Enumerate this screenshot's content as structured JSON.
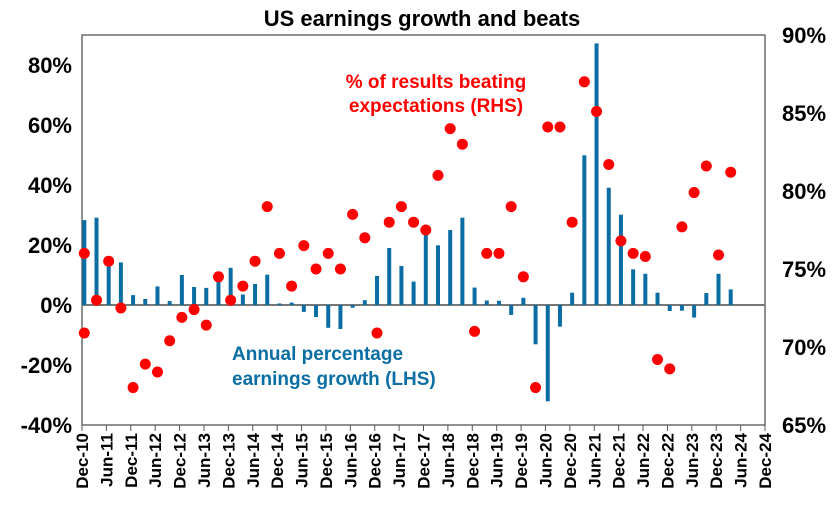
{
  "chart_data": {
    "type": "bar",
    "title": "US earnings growth and beats",
    "xlabel": "",
    "ylabel": "",
    "x_ticks": [
      "Dec-10",
      "Jun-11",
      "Dec-11",
      "Jun-12",
      "Dec-12",
      "Jun-13",
      "Dec-13",
      "Jun-14",
      "Dec-14",
      "Jun-15",
      "Dec-15",
      "Jun-16",
      "Dec-16",
      "Jun-17",
      "Dec-17",
      "Jun-18",
      "Dec-18",
      "Jun-19",
      "Dec-19",
      "Jun-20",
      "Dec-20",
      "Jun-21",
      "Dec-21",
      "Jun-22",
      "Dec-22",
      "Jun-23",
      "Dec-23",
      "Jun-24",
      "Dec-24"
    ],
    "x_frequency": "quarterly",
    "left_axis": {
      "ylim": [
        -40,
        90
      ],
      "ticks": [
        -40,
        -20,
        0,
        20,
        40,
        60,
        80
      ],
      "tick_labels": [
        "-40%",
        "-20%",
        "0%",
        "20%",
        "40%",
        "60%",
        "80%"
      ]
    },
    "right_axis": {
      "ylim": [
        65,
        90
      ],
      "ticks": [
        65,
        70,
        75,
        80,
        85,
        90
      ],
      "tick_labels": [
        "65%",
        "70%",
        "75%",
        "80%",
        "85%",
        "90%"
      ]
    },
    "grid": false,
    "series": [
      {
        "name": "Annual percentage earnings growth (LHS)",
        "type": "bar",
        "axis": "left",
        "color": "#0a6ea4",
        "values": [
          28.3,
          29.1,
          14.5,
          14.2,
          3.3,
          2.0,
          6.2,
          1.3,
          10.0,
          6.0,
          5.7,
          7.8,
          12.4,
          3.5,
          7.0,
          10.1,
          0.5,
          0.8,
          -2.3,
          -4.0,
          -7.6,
          -8.0,
          -0.9,
          1.6,
          9.7,
          19.0,
          13.0,
          7.8,
          25.0,
          19.9,
          25.0,
          29.1,
          5.8,
          1.5,
          1.4,
          -3.3,
          2.4,
          -13.1,
          -32.1,
          -7.2,
          4.1,
          49.9,
          87.2,
          39.1,
          30.1,
          11.9,
          10.4,
          4.1,
          -2.0,
          -1.9,
          -4.2,
          4.0,
          10.4,
          5.2
        ]
      },
      {
        "name": "% of results beating expectations (RHS)",
        "type": "scatter",
        "axis": "right",
        "color": "#ff0000",
        "points": [
          {
            "q": 0,
            "v": 70.9
          },
          {
            "q": 0,
            "v": 76.0
          },
          {
            "q": 1,
            "v": 73.0
          },
          {
            "q": 2,
            "v": 75.5
          },
          {
            "q": 3,
            "v": 72.5
          },
          {
            "q": 4,
            "v": 67.4
          },
          {
            "q": 5,
            "v": 68.9
          },
          {
            "q": 6,
            "v": 68.4
          },
          {
            "q": 7,
            "v": 70.4
          },
          {
            "q": 8,
            "v": 71.9
          },
          {
            "q": 9,
            "v": 72.4
          },
          {
            "q": 10,
            "v": 71.4
          },
          {
            "q": 11,
            "v": 74.5
          },
          {
            "q": 12,
            "v": 73.0
          },
          {
            "q": 13,
            "v": 73.9
          },
          {
            "q": 14,
            "v": 75.5
          },
          {
            "q": 15,
            "v": 79.0
          },
          {
            "q": 16,
            "v": 76.0
          },
          {
            "q": 17,
            "v": 73.9
          },
          {
            "q": 18,
            "v": 76.5
          },
          {
            "q": 19,
            "v": 75.0
          },
          {
            "q": 20,
            "v": 76.0
          },
          {
            "q": 21,
            "v": 75.0
          },
          {
            "q": 22,
            "v": 78.5
          },
          {
            "q": 23,
            "v": 77.0
          },
          {
            "q": 24,
            "v": 70.9
          },
          {
            "q": 25,
            "v": 78.0
          },
          {
            "q": 26,
            "v": 79.0
          },
          {
            "q": 27,
            "v": 78.0
          },
          {
            "q": 28,
            "v": 77.5
          },
          {
            "q": 29,
            "v": 81.0
          },
          {
            "q": 30,
            "v": 84.0
          },
          {
            "q": 31,
            "v": 83.0
          },
          {
            "q": 32,
            "v": 71.0
          },
          {
            "q": 33,
            "v": 76.0
          },
          {
            "q": 34,
            "v": 76.0
          },
          {
            "q": 35,
            "v": 79.0
          },
          {
            "q": 36,
            "v": 74.5
          },
          {
            "q": 37,
            "v": 67.4
          },
          {
            "q": 38,
            "v": 84.1
          },
          {
            "q": 39,
            "v": 84.1
          },
          {
            "q": 40,
            "v": 78.0
          },
          {
            "q": 41,
            "v": 87.0
          },
          {
            "q": 42,
            "v": 85.1
          },
          {
            "q": 43,
            "v": 81.7
          },
          {
            "q": 44,
            "v": 76.8
          },
          {
            "q": 45,
            "v": 76.0
          },
          {
            "q": 46,
            "v": 75.8
          },
          {
            "q": 47,
            "v": 69.2
          },
          {
            "q": 48,
            "v": 68.6
          },
          {
            "q": 49,
            "v": 77.7
          },
          {
            "q": 50,
            "v": 79.9
          },
          {
            "q": 51,
            "v": 81.6
          },
          {
            "q": 52,
            "v": 75.9
          },
          {
            "q": 53,
            "v": 81.2
          }
        ]
      }
    ],
    "annotations": {
      "rhs_label_line1": "% of results beating",
      "rhs_label_line2": "expectations (RHS)",
      "lhs_label_line1": "Annual percentage",
      "lhs_label_line2": "earnings growth (LHS)"
    },
    "legend": "none (inline annotations)"
  }
}
